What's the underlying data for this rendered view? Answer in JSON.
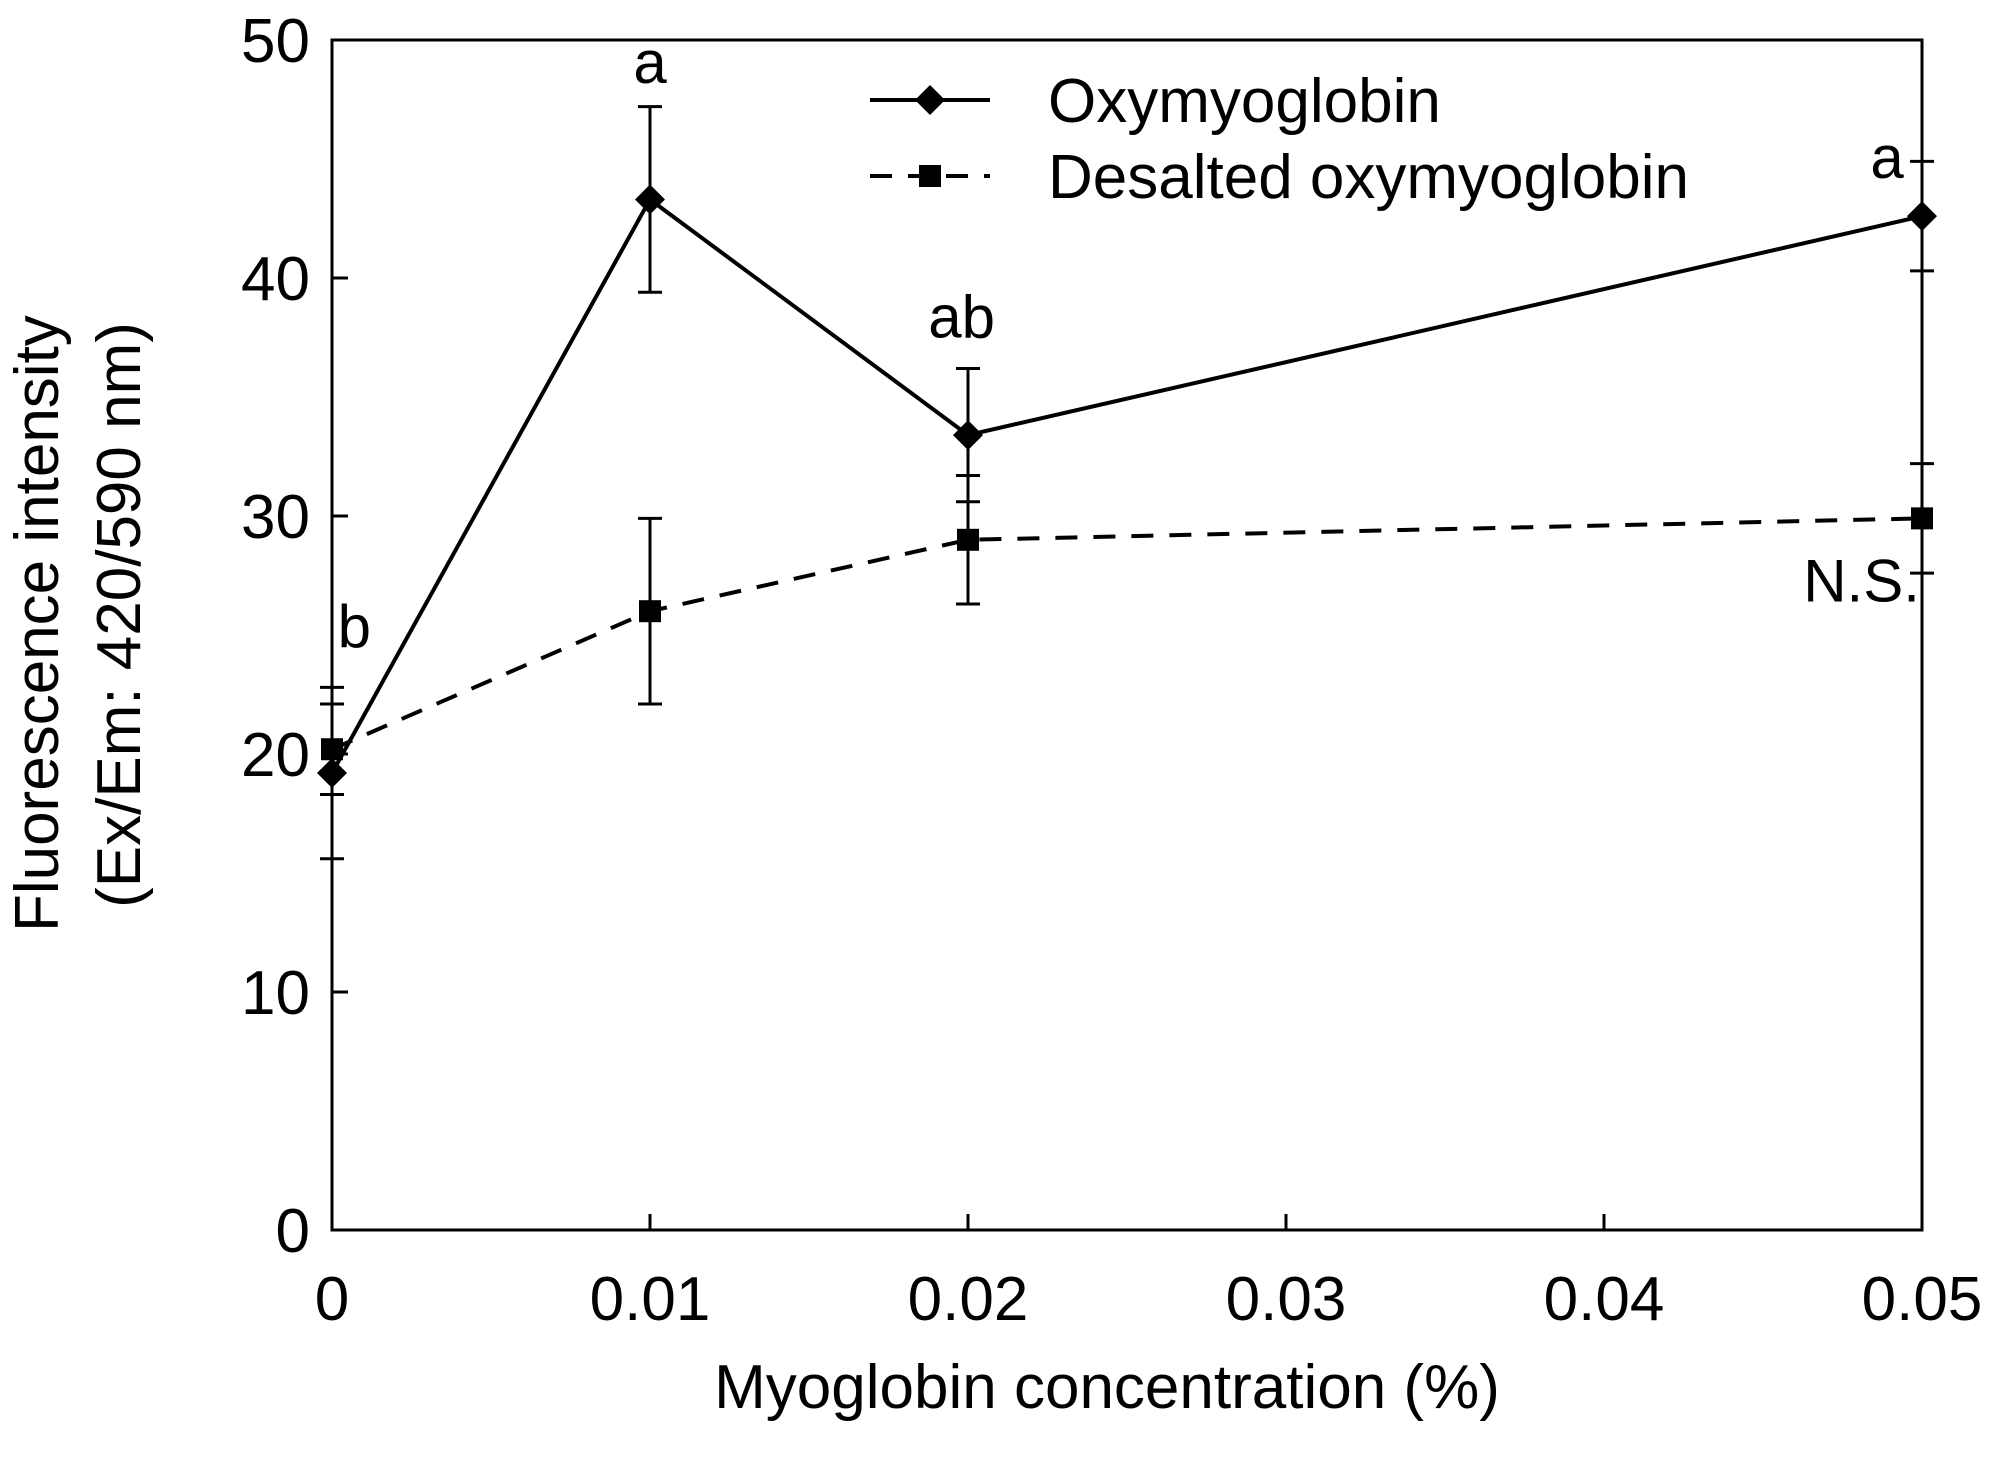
{
  "chart_data": {
    "type": "line",
    "xlabel": "Myoglobin concentration (%)",
    "ylabel_lines": [
      "Fluorescence intensity",
      "(Ex/Em: 420/590 nm)"
    ],
    "xlim": [
      0,
      0.05
    ],
    "ylim": [
      0,
      50
    ],
    "x_ticks": [
      0,
      0.01,
      0.02,
      0.03,
      0.04,
      0.05
    ],
    "x_tick_labels": [
      "0",
      "0.01",
      "0.02",
      "0.03",
      "0.04",
      "0.05"
    ],
    "y_ticks": [
      0,
      10,
      20,
      30,
      40,
      50
    ],
    "y_tick_labels": [
      "0",
      "10",
      "20",
      "30",
      "40",
      "50"
    ],
    "grid": false,
    "legend_position": "top-right",
    "series": [
      {
        "name": "Oxymyoglobin",
        "marker": "diamond",
        "line_style": "solid",
        "color": "#000000",
        "x": [
          0,
          0.01,
          0.02,
          0.05
        ],
        "y": [
          19.2,
          43.3,
          33.4,
          42.6
        ],
        "error": [
          3.6,
          3.9,
          2.8,
          2.3
        ]
      },
      {
        "name": "Desalted oxymyoglobin",
        "marker": "square",
        "line_style": "dashed",
        "color": "#000000",
        "x": [
          0,
          0.01,
          0.02,
          0.05
        ],
        "y": [
          20.2,
          26.0,
          29.0,
          29.9
        ],
        "error": [
          1.9,
          3.9,
          2.7,
          2.3
        ]
      }
    ],
    "annotations": [
      {
        "text": "b",
        "x": 0.0007,
        "y": 24.5
      },
      {
        "text": "a",
        "x": 0.01,
        "y": 48.2
      },
      {
        "text": "ab",
        "x": 0.0198,
        "y": 37.5
      },
      {
        "text": "a",
        "x": 0.0489,
        "y": 44.2
      },
      {
        "text": "N.S.",
        "x": 0.0481,
        "y": 26.4
      }
    ]
  }
}
